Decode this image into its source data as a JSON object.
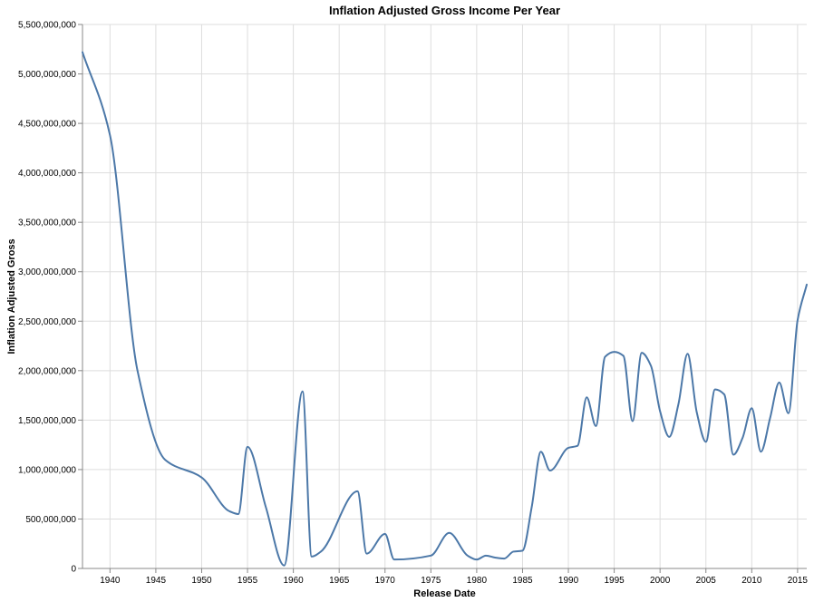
{
  "chart_data": {
    "type": "line",
    "title": "Inflation Adjusted Gross Income Per Year",
    "xlabel": "Release Date",
    "ylabel": "Inflation Adjusted Gross",
    "xlim": [
      1937,
      2016
    ],
    "ylim": [
      0,
      5500000000
    ],
    "x_ticks": [
      1940,
      1945,
      1950,
      1955,
      1960,
      1965,
      1970,
      1975,
      1980,
      1985,
      1990,
      1995,
      2000,
      2005,
      2010,
      2015
    ],
    "y_ticks": [
      0,
      500000000,
      1000000000,
      1500000000,
      2000000000,
      2500000000,
      3000000000,
      3500000000,
      4000000000,
      4500000000,
      5000000000,
      5500000000
    ],
    "y_tick_labels": [
      "0",
      "500,000,000",
      "1,000,000,000",
      "1,500,000,000",
      "2,000,000,000",
      "2,500,000,000",
      "3,000,000,000",
      "3,500,000,000",
      "4,000,000,000",
      "4,500,000,000",
      "5,000,000,000",
      "5,500,000,000"
    ],
    "grid": true,
    "series": [
      {
        "color": "#4c78a8",
        "x": [
          1937,
          1940,
          1943,
          1946,
          1950,
          1953,
          1954,
          1955,
          1957,
          1959,
          1961,
          1962,
          1963,
          1967,
          1968,
          1970,
          1971,
          1975,
          1977,
          1979,
          1980,
          1981,
          1982,
          1983,
          1984,
          1985,
          1986,
          1987,
          1988,
          1990,
          1991,
          1992,
          1993,
          1994,
          1995,
          1996,
          1997,
          1998,
          1999,
          2000,
          2001,
          2002,
          2003,
          2004,
          2005,
          2006,
          2007,
          2008,
          2009,
          2010,
          2011,
          2012,
          2013,
          2014,
          2015,
          2016
        ],
        "y": [
          5220000000,
          4380000000,
          2000000000,
          1100000000,
          920000000,
          580000000,
          550000000,
          1230000000,
          620000000,
          30000000,
          1790000000,
          120000000,
          170000000,
          780000000,
          150000000,
          350000000,
          90000000,
          130000000,
          360000000,
          130000000,
          90000000,
          130000000,
          110000000,
          100000000,
          170000000,
          180000000,
          620000000,
          1180000000,
          990000000,
          1220000000,
          1240000000,
          1730000000,
          1440000000,
          2140000000,
          2190000000,
          2150000000,
          1490000000,
          2180000000,
          2050000000,
          1590000000,
          1330000000,
          1660000000,
          2170000000,
          1580000000,
          1280000000,
          1810000000,
          1760000000,
          1150000000,
          1320000000,
          1620000000,
          1180000000,
          1520000000,
          1880000000,
          1570000000,
          2510000000,
          2870000000
        ]
      }
    ]
  }
}
